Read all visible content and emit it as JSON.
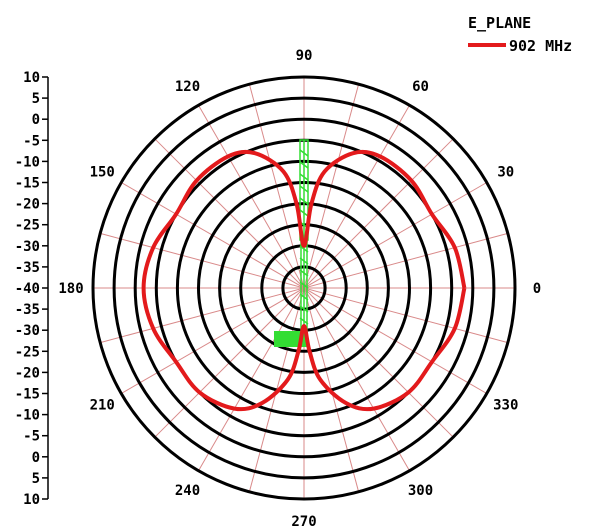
{
  "chart_data": {
    "type": "polar",
    "title": "E_PLANE",
    "series": [
      {
        "name": "902 MHz",
        "color": "#e31a1c",
        "angles_deg": [
          0,
          15,
          30,
          45,
          60,
          70,
          80,
          85,
          90,
          95,
          100,
          110,
          120,
          135,
          150,
          165,
          180,
          195,
          210,
          225,
          240,
          250,
          260,
          265,
          270,
          275,
          280,
          290,
          300,
          315,
          330,
          345,
          360
        ],
        "values_db": [
          -2,
          -3,
          -5,
          -4,
          -4,
          -6,
          -12,
          -20,
          -30,
          -20,
          -12,
          -6,
          -4,
          -4,
          -5,
          -3,
          -2,
          -3,
          -5,
          -5,
          -7,
          -11,
          -18,
          -25,
          -31,
          -25,
          -18,
          -11,
          -7,
          -5,
          -5,
          -3,
          -2
        ]
      }
    ],
    "r_range": [
      -40,
      10
    ],
    "r_ticks": [
      10,
      5,
      0,
      -5,
      -10,
      -15,
      -20,
      -25,
      -30,
      -35,
      -40
    ],
    "rings_db": [
      -35,
      -30,
      -25,
      -20,
      -15,
      -10,
      -5,
      0,
      5,
      10
    ],
    "angle_labels": [
      "0",
      "30",
      "60",
      "90",
      "120",
      "150",
      "180",
      "210",
      "240",
      "270",
      "300",
      "330"
    ],
    "grid_color": "#d98a8a",
    "ring_color": "#000000"
  },
  "colors": {
    "antenna": "#33dd33"
  },
  "icons": {
    "antenna": "antenna-outline-icon"
  }
}
